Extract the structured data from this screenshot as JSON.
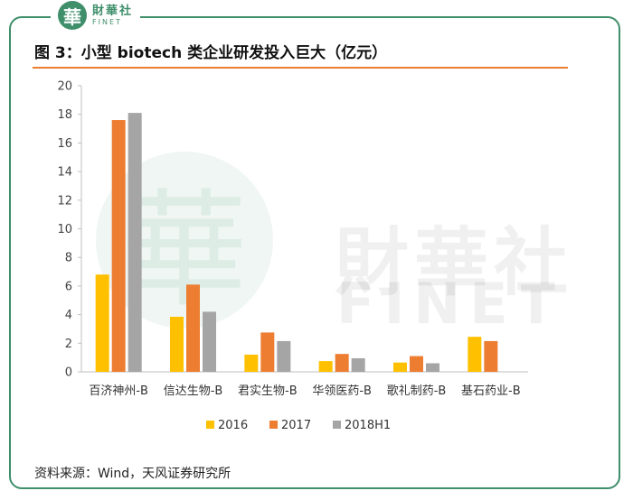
{
  "header": {
    "logo_mark": "華",
    "logo_cn": "財華社",
    "logo_en": "FINET",
    "title": "图 3：小型 biotech 类企业研发投入巨大（亿元）"
  },
  "watermark": {
    "cn": "財華社",
    "en": "FINET",
    "seal": "華"
  },
  "footer": {
    "source": "资料来源：Wind，天风证券研究所"
  },
  "colors": {
    "accent_green": "#3f8f6b",
    "rule_orange": "#ed7d31"
  },
  "chart_data": {
    "type": "bar",
    "title": "",
    "xlabel": "",
    "ylabel": "",
    "ylim": [
      0,
      20
    ],
    "yticks": [
      0,
      2,
      4,
      6,
      8,
      10,
      12,
      14,
      16,
      18,
      20
    ],
    "grid": false,
    "legend_position": "bottom",
    "categories": [
      "百济神州-B",
      "信达生物-B",
      "君实生物-B",
      "华领医药-B",
      "歌礼制药-B",
      "基石药业-B"
    ],
    "series": [
      {
        "name": "2016",
        "color": "#ffc000",
        "values": [
          6.8,
          3.85,
          1.2,
          0.75,
          0.65,
          2.45
        ]
      },
      {
        "name": "2017",
        "color": "#ed7d31",
        "values": [
          17.6,
          6.1,
          2.75,
          1.25,
          1.1,
          2.15
        ]
      },
      {
        "name": "2018H1",
        "color": "#a5a5a5",
        "values": [
          18.1,
          4.2,
          2.15,
          0.95,
          0.6,
          null
        ]
      }
    ]
  }
}
